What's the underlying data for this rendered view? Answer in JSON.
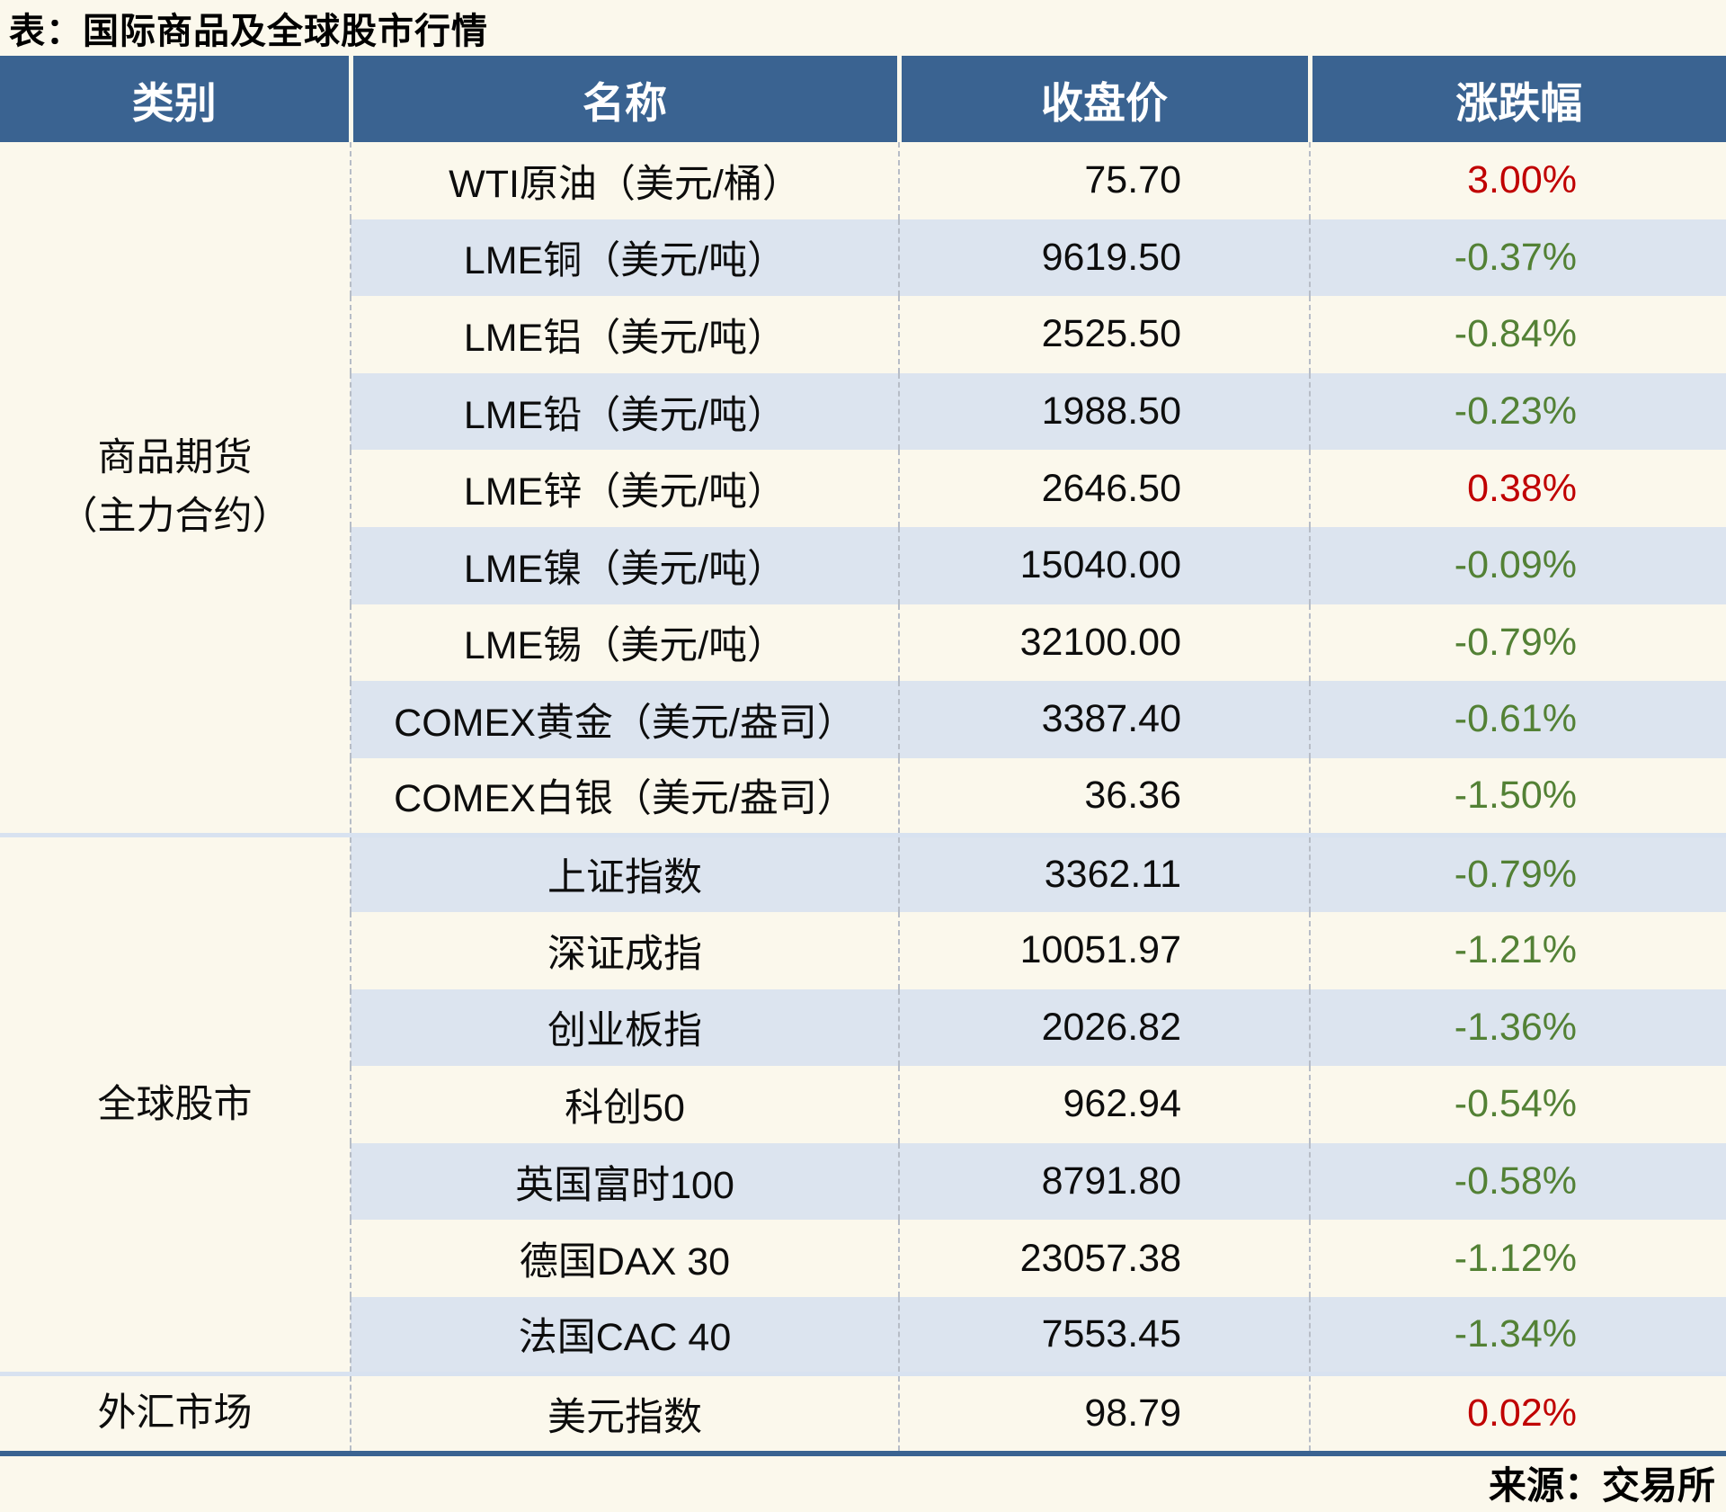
{
  "title": "表：国际商品及全球股市行情",
  "source": "来源：交易所",
  "colors": {
    "up": "#c00000",
    "down": "#538135",
    "header_bg": "#3a6391",
    "stripe_row": "#dce4ef",
    "page_bg": "#fbf8ec",
    "bottom_rule": "#3a6391"
  },
  "table": {
    "headers": [
      "类别",
      "名称",
      "收盘价",
      "涨跌幅"
    ],
    "sections": [
      {
        "category": [
          "商品期货",
          "（主力合约）"
        ],
        "rows": [
          {
            "name": "WTI原油（美元/桶）",
            "close": "75.70",
            "change": "3.00%",
            "direction": "up"
          },
          {
            "name": "LME铜（美元/吨）",
            "close": "9619.50",
            "change": "-0.37%",
            "direction": "down"
          },
          {
            "name": "LME铝（美元/吨）",
            "close": "2525.50",
            "change": "-0.84%",
            "direction": "down"
          },
          {
            "name": "LME铅（美元/吨）",
            "close": "1988.50",
            "change": "-0.23%",
            "direction": "down"
          },
          {
            "name": "LME锌（美元/吨）",
            "close": "2646.50",
            "change": "0.38%",
            "direction": "up"
          },
          {
            "name": "LME镍（美元/吨）",
            "close": "15040.00",
            "change": "-0.09%",
            "direction": "down"
          },
          {
            "name": "LME锡（美元/吨）",
            "close": "32100.00",
            "change": "-0.79%",
            "direction": "down"
          },
          {
            "name": "COMEX黄金（美元/盎司）",
            "close": "3387.40",
            "change": "-0.61%",
            "direction": "down"
          },
          {
            "name": "COMEX白银（美元/盎司）",
            "close": "36.36",
            "change": "-1.50%",
            "direction": "down"
          }
        ]
      },
      {
        "category": [
          "全球股市"
        ],
        "rows": [
          {
            "name": "上证指数",
            "close": "3362.11",
            "change": "-0.79%",
            "direction": "down"
          },
          {
            "name": "深证成指",
            "close": "10051.97",
            "change": "-1.21%",
            "direction": "down"
          },
          {
            "name": "创业板指",
            "close": "2026.82",
            "change": "-1.36%",
            "direction": "down"
          },
          {
            "name": "科创50",
            "close": "962.94",
            "change": "-0.54%",
            "direction": "down"
          },
          {
            "name": "英国富时100",
            "close": "8791.80",
            "change": "-0.58%",
            "direction": "down"
          },
          {
            "name": "德国DAX 30",
            "close": "23057.38",
            "change": "-1.12%",
            "direction": "down"
          },
          {
            "name": "法国CAC 40",
            "close": "7553.45",
            "change": "-1.34%",
            "direction": "down"
          }
        ]
      },
      {
        "category": [
          "外汇市场"
        ],
        "rows": [
          {
            "name": "美元指数",
            "close": "98.79",
            "change": "0.02%",
            "direction": "up"
          }
        ]
      }
    ]
  }
}
